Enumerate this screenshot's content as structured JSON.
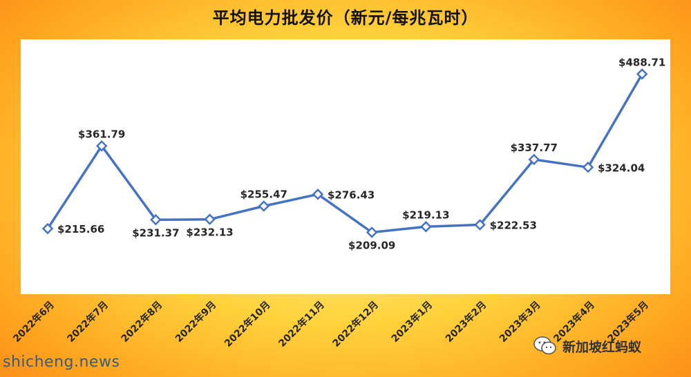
{
  "chart_data": {
    "type": "line",
    "title": "平均电力批发价（新元/每兆瓦时）",
    "categories": [
      "2022年6月",
      "2022年7月",
      "2022年8月",
      "2022年9月",
      "2022年10月",
      "2022年11月",
      "2022年12月",
      "2023年1月",
      "2023年2月",
      "2023年3月",
      "2023年4月",
      "2023年5月"
    ],
    "series": [
      {
        "values": [
          215.66,
          361.79,
          231.37,
          232.13,
          255.47,
          276.43,
          209.09,
          219.13,
          222.53,
          337.77,
          324.04,
          488.71
        ],
        "labels": [
          "$215.66",
          "$361.79",
          "$231.37",
          "$232.13",
          "$255.47",
          "$276.43",
          "$209.09",
          "$219.13",
          "$222.53",
          "$337.77",
          "$324.04",
          "$488.71"
        ],
        "color": "#4472c4"
      }
    ],
    "ylim": [
      100,
      550
    ],
    "grid": false,
    "legend": "none"
  },
  "watermark_left": "shicheng.news",
  "wechat": {
    "label": "新加坡红蚂蚁",
    "icon": "wechat-icon"
  }
}
